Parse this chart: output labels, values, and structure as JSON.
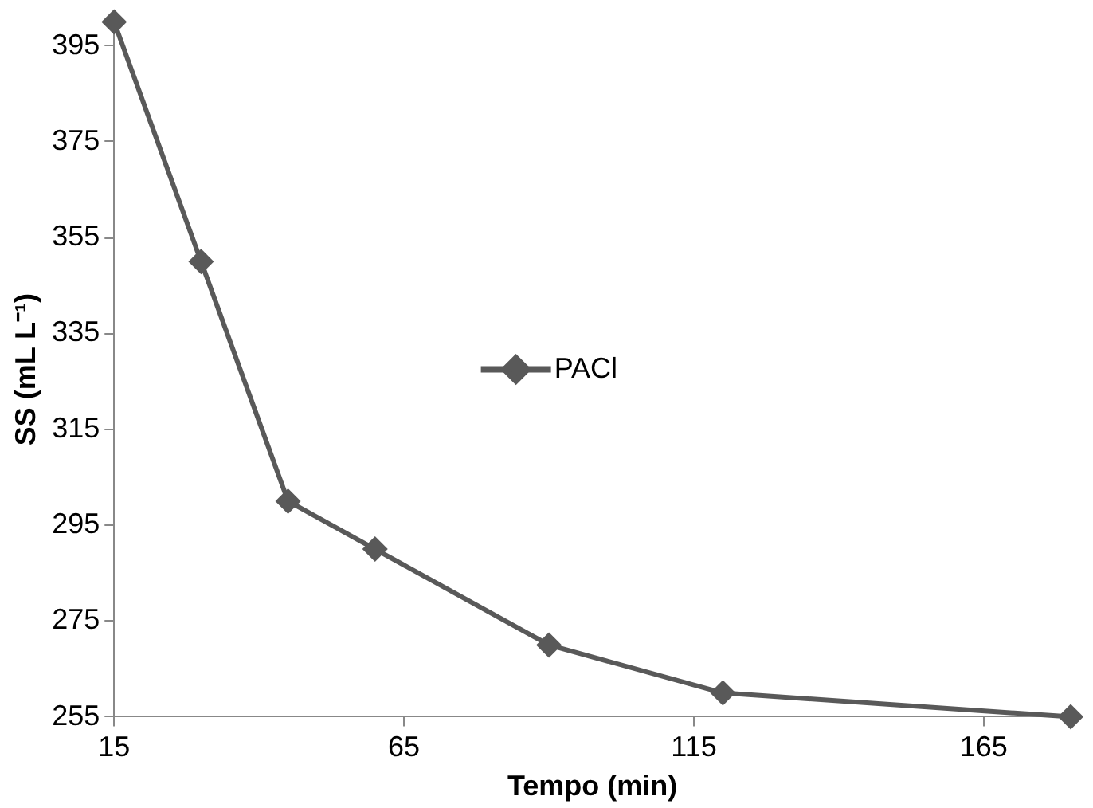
{
  "chart_data": {
    "type": "line",
    "xlabel": "Tempo (min)",
    "ylabel": "SS (mL L⁻¹)",
    "x": [
      15,
      30,
      45,
      60,
      90,
      120,
      180
    ],
    "series": [
      {
        "name": "PACl",
        "color": "#595959",
        "values": [
          400,
          350,
          300,
          290,
          270,
          260,
          255
        ]
      }
    ],
    "xlim": [
      15,
      180
    ],
    "xticks": [
      15,
      65,
      115,
      165
    ],
    "ylim": [
      255,
      400
    ],
    "yticks": [
      255,
      275,
      295,
      315,
      335,
      355,
      375,
      395
    ],
    "grid": false,
    "legend": "center",
    "marker": "diamond",
    "line_style": "solid"
  }
}
